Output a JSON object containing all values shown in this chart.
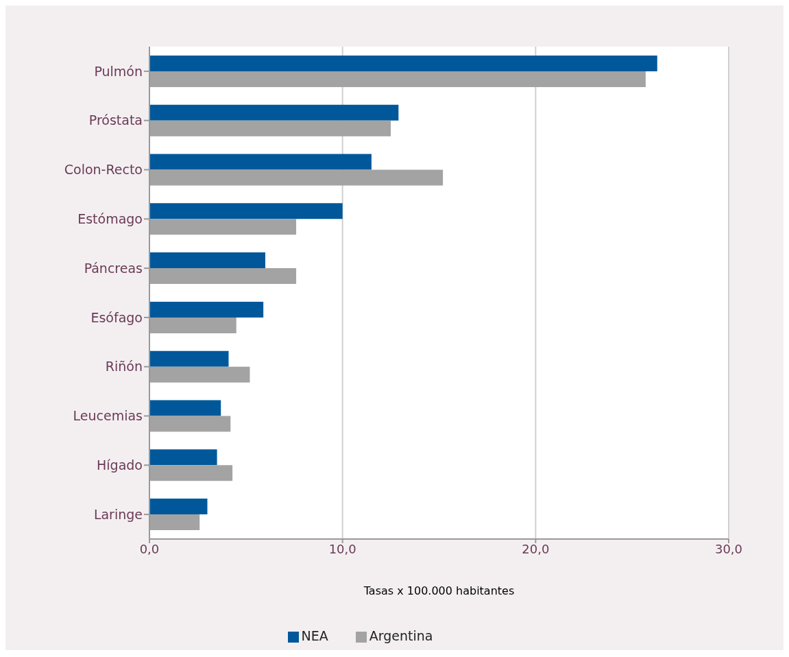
{
  "chart_data": {
    "type": "bar",
    "orientation": "horizontal",
    "xlabel": "Tasas x 100.000 habitantes",
    "categories": [
      "Pulmón",
      "Próstata",
      "Colon-Recto",
      "Estómago",
      "Páncreas",
      "Esófago",
      "Riñón",
      "Leucemias",
      "Hígado",
      "Laringe"
    ],
    "series": [
      {
        "name": "NEA",
        "color": "#00589a",
        "values": [
          26.3,
          12.9,
          11.5,
          10.0,
          6.0,
          5.9,
          4.1,
          3.7,
          3.5,
          3.0
        ]
      },
      {
        "name": "Argentina",
        "color": "#a3a3a3",
        "values": [
          25.7,
          12.5,
          15.2,
          7.6,
          7.6,
          4.5,
          5.2,
          4.2,
          4.3,
          2.6
        ]
      }
    ],
    "xlim": [
      0,
      30
    ],
    "xticks": [
      {
        "value": 0,
        "label": "0,0"
      },
      {
        "value": 10,
        "label": "10,0"
      },
      {
        "value": 20,
        "label": "20,0"
      },
      {
        "value": 30,
        "label": "30,0"
      }
    ],
    "grid": "x",
    "legend": "bottom"
  }
}
